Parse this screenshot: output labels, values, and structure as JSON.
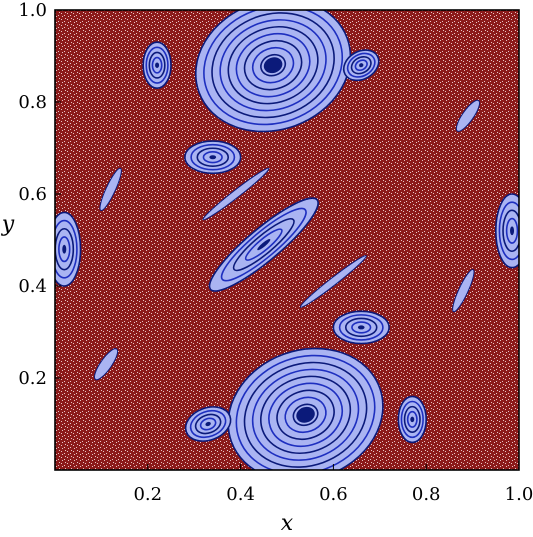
{
  "chart_data": {
    "type": "scatter",
    "title": "",
    "xlabel": "x",
    "ylabel": "y",
    "xlim": [
      0.0,
      1.0
    ],
    "ylim": [
      0.0,
      1.0
    ],
    "xticks": [
      {
        "value": 0.2,
        "label": "0.2"
      },
      {
        "value": 0.4,
        "label": "0.4"
      },
      {
        "value": 0.6,
        "label": "0.6"
      },
      {
        "value": 0.8,
        "label": "0.8"
      },
      {
        "value": 1.0,
        "label": "1.0"
      }
    ],
    "yticks": [
      {
        "value": 0.2,
        "label": "0.2"
      },
      {
        "value": 0.4,
        "label": "0.4"
      },
      {
        "value": 0.6,
        "label": "0.6"
      },
      {
        "value": 0.8,
        "label": "0.8"
      },
      {
        "value": 1.0,
        "label": "1.0"
      }
    ],
    "grid": false,
    "legend": "none",
    "series": [
      {
        "color": "#8b1a1a",
        "kind": "chaotic-sea",
        "regions": [
          {
            "x0": 0.0,
            "x1": 1.0,
            "y0": 0.0,
            "y1": 1.0
          }
        ]
      },
      {
        "color": "#1e2fbf",
        "kind": "regular-islands",
        "islands": [
          {
            "cx": 0.47,
            "cy": 0.88,
            "rx": 0.17,
            "ry": 0.14,
            "angle": -20
          },
          {
            "cx": 0.54,
            "cy": 0.12,
            "rx": 0.17,
            "ry": 0.14,
            "angle": -20
          },
          {
            "cx": 0.22,
            "cy": 0.88,
            "rx": 0.03,
            "ry": 0.05,
            "angle": 0
          },
          {
            "cx": 0.66,
            "cy": 0.88,
            "rx": 0.04,
            "ry": 0.03,
            "angle": -30
          },
          {
            "cx": 0.34,
            "cy": 0.68,
            "rx": 0.06,
            "ry": 0.035,
            "angle": 0
          },
          {
            "cx": 0.66,
            "cy": 0.31,
            "rx": 0.06,
            "ry": 0.035,
            "angle": 0
          },
          {
            "cx": 0.33,
            "cy": 0.1,
            "rx": 0.05,
            "ry": 0.035,
            "angle": -20
          },
          {
            "cx": 0.77,
            "cy": 0.11,
            "rx": 0.03,
            "ry": 0.05,
            "angle": 0
          },
          {
            "cx": 0.02,
            "cy": 0.48,
            "rx": 0.035,
            "ry": 0.08,
            "angle": 0
          },
          {
            "cx": 0.985,
            "cy": 0.52,
            "rx": 0.035,
            "ry": 0.08,
            "angle": 0
          },
          {
            "cx": 0.45,
            "cy": 0.49,
            "rx": 0.15,
            "ry": 0.035,
            "angle": -40
          },
          {
            "cx": 0.12,
            "cy": 0.61,
            "rx": 0.05,
            "ry": 0.01,
            "angle": -65
          },
          {
            "cx": 0.88,
            "cy": 0.39,
            "rx": 0.05,
            "ry": 0.01,
            "angle": -65
          },
          {
            "cx": 0.11,
            "cy": 0.23,
            "rx": 0.04,
            "ry": 0.012,
            "angle": -55
          },
          {
            "cx": 0.89,
            "cy": 0.77,
            "rx": 0.04,
            "ry": 0.012,
            "angle": -55
          },
          {
            "cx": 0.39,
            "cy": 0.6,
            "rx": 0.09,
            "ry": 0.008,
            "angle": -38
          },
          {
            "cx": 0.6,
            "cy": 0.41,
            "rx": 0.09,
            "ry": 0.008,
            "angle": -38
          }
        ]
      }
    ]
  }
}
